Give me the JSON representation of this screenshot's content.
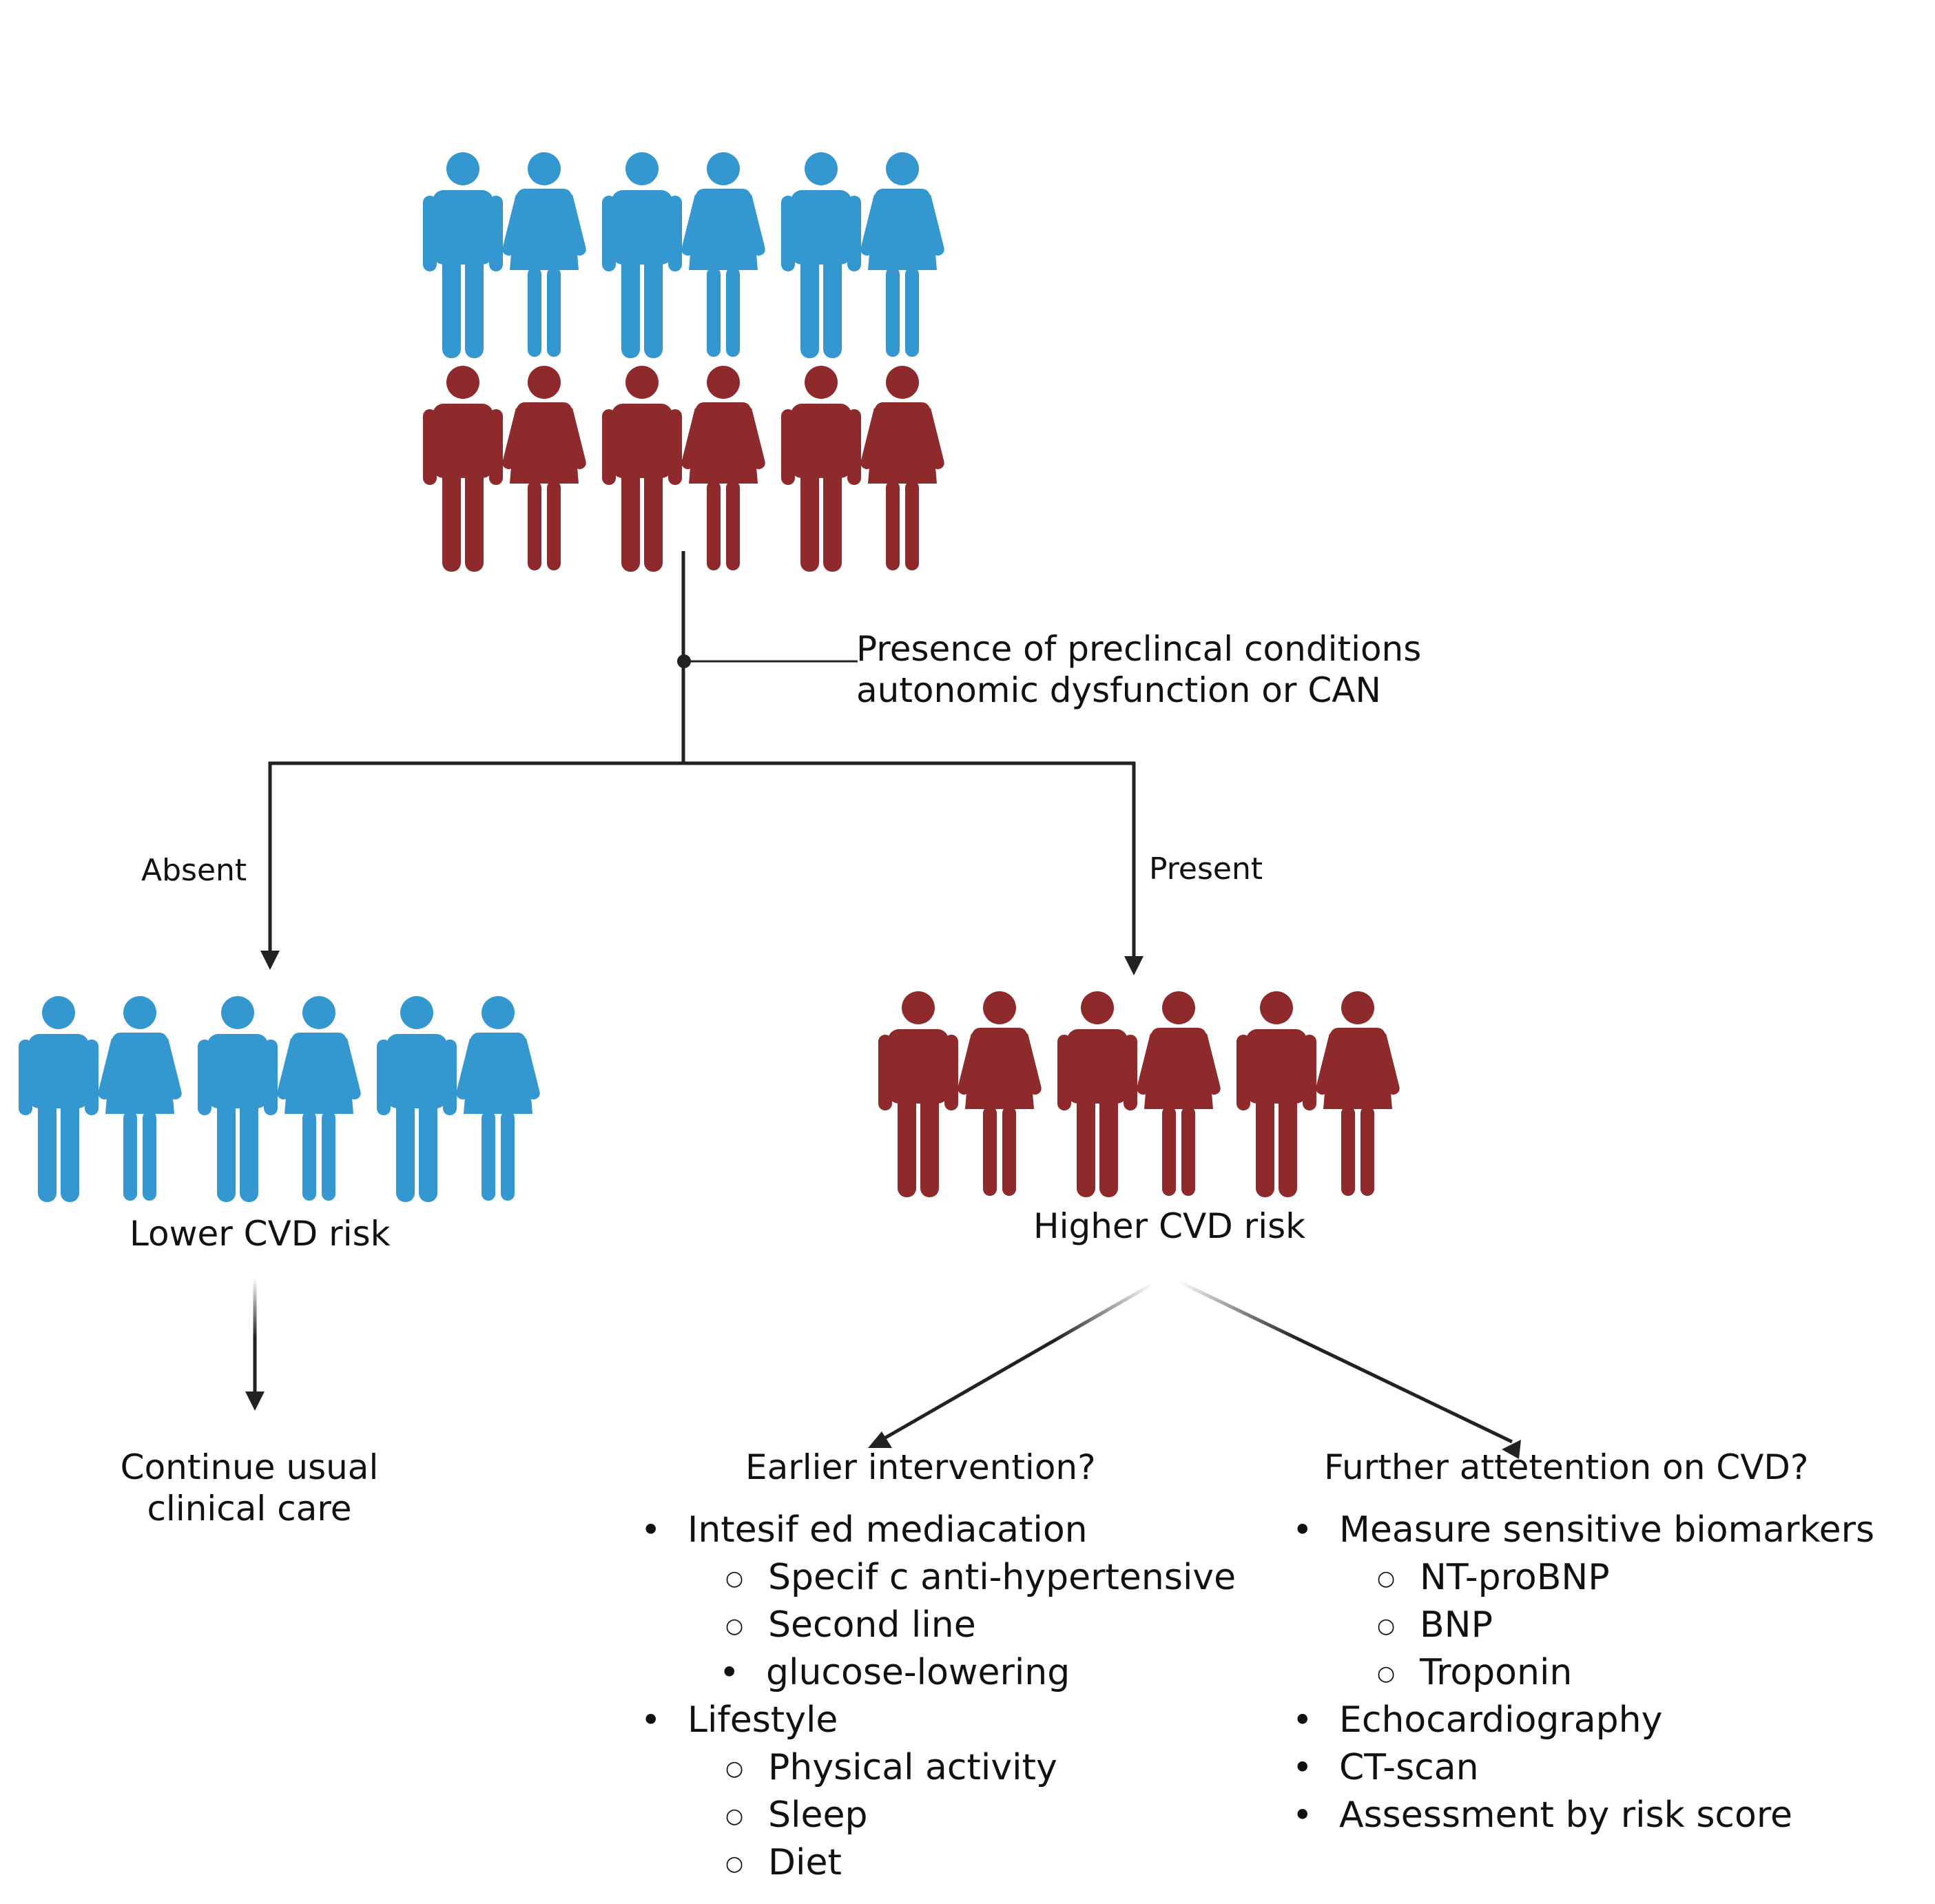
{
  "colors": {
    "blue": "#3497CF",
    "red": "#8E2A2B",
    "line": "#222222"
  },
  "icons": {
    "male": "male-person-icon",
    "female": "female-person-icon"
  },
  "question": {
    "line1": "Presence of preclincal conditions",
    "line2": "autonomic dysfunction or CAN"
  },
  "branches": {
    "absent": "Absent",
    "present": "Present"
  },
  "groups": {
    "lower": "Lower CVD risk",
    "higher": "Higher CVD risk"
  },
  "continue": {
    "line1": "Continue usual",
    "line2": "clinical care"
  },
  "earlier": {
    "title": "Earlier intervention?",
    "items": [
      {
        "label": "Intesif ed mediacation",
        "sub": [
          "Specif c anti-hypertensive",
          "Second line",
          "glucose-lowering"
        ]
      },
      {
        "label": "Lifestyle",
        "sub": [
          "Physical activity",
          "Sleep",
          "Diet"
        ]
      }
    ]
  },
  "further": {
    "title": "Further attetention on CVD?",
    "items": [
      {
        "label": "Measure sensitive biomarkers",
        "sub": [
          "NT-proBNP",
          "BNP",
          "Troponin"
        ]
      },
      {
        "label": "Echocardiography",
        "sub": []
      },
      {
        "label": "CT-scan",
        "sub": []
      },
      {
        "label": "Assessment by risk score",
        "sub": []
      }
    ]
  }
}
